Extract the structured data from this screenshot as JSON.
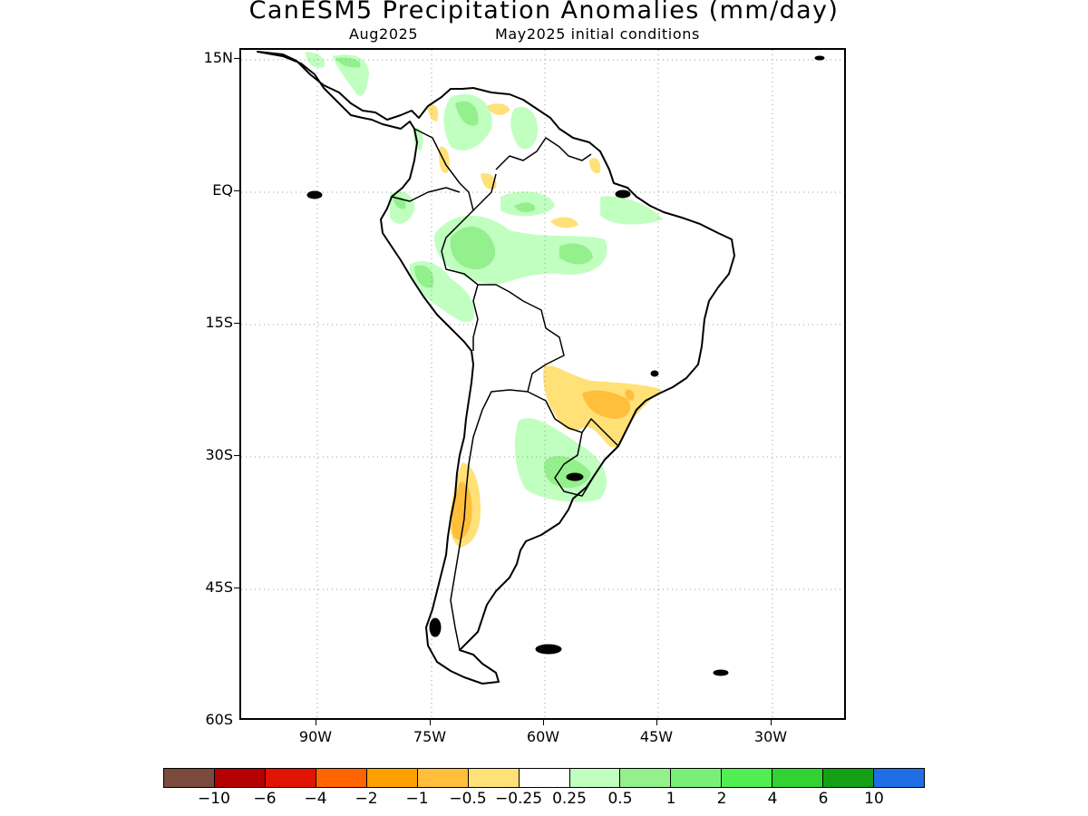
{
  "title": "CanESM5 Precipitation Anomalies (mm/day)",
  "subtitle_left": "Aug2025",
  "subtitle_right": "May2025 initial conditions",
  "map": {
    "region": "South America",
    "lon_range": [
      -103,
      -23
    ],
    "lat_range": [
      -60,
      15
    ],
    "y_ticks": [
      "15N",
      "EQ",
      "15S",
      "30S",
      "45S",
      "60S"
    ],
    "x_ticks": [
      "90W",
      "75W",
      "60W",
      "45W",
      "30W"
    ],
    "grid": "dotted"
  },
  "colorbar": {
    "colors": [
      "#7a4a3c",
      "#b40000",
      "#e01400",
      "#ff6400",
      "#ffa000",
      "#ffbe3c",
      "#ffe178",
      "#ffffff",
      "#c0ffc0",
      "#94f08c",
      "#78f078",
      "#50ee50",
      "#32d232",
      "#14a014",
      "#1e6ee6"
    ],
    "labels": [
      "−10",
      "−6",
      "−4",
      "−2",
      "−1",
      "−0.5",
      "−0.25",
      "0.25",
      "0.5",
      "1",
      "2",
      "4",
      "6",
      "10"
    ]
  }
}
